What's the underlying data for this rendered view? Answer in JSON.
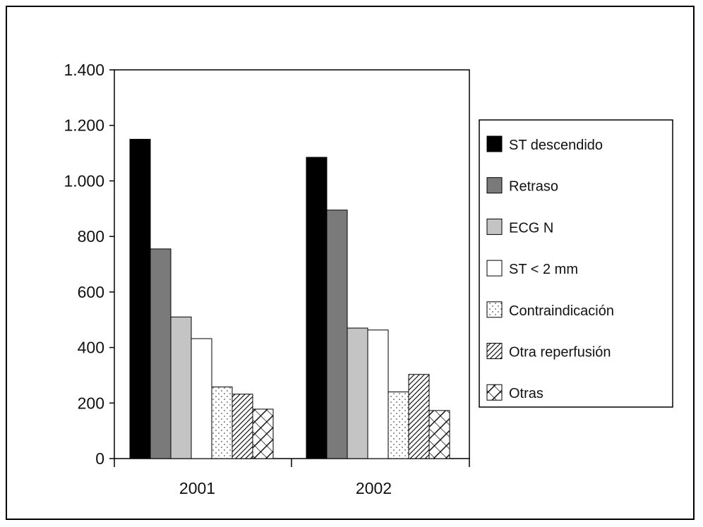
{
  "chart_data": {
    "type": "bar",
    "title": "",
    "xlabel": "",
    "ylabel": "",
    "categories": [
      "2001",
      "2002"
    ],
    "ylim": [
      0,
      1400
    ],
    "yticks": [
      0,
      200,
      400,
      600,
      800,
      1000,
      1200,
      1400
    ],
    "ytick_labels": [
      "0",
      "200",
      "400",
      "600",
      "800",
      "1.000",
      "1.200",
      "1.400"
    ],
    "grid": false,
    "legend_position": "right",
    "series": [
      {
        "name": "ST descendido",
        "values": [
          1150,
          1085
        ],
        "fill": "#000000",
        "pattern": "solid"
      },
      {
        "name": "Retraso",
        "values": [
          755,
          895
        ],
        "fill": "#7a7a7a",
        "pattern": "solid"
      },
      {
        "name": "ECG N",
        "values": [
          510,
          470
        ],
        "fill": "#c4c4c4",
        "pattern": "solid"
      },
      {
        "name": "ST < 2 mm",
        "values": [
          432,
          463
        ],
        "fill": "#ffffff",
        "pattern": "solid"
      },
      {
        "name": "Contraindicación",
        "values": [
          258,
          240
        ],
        "fill": "#ffffff",
        "pattern": "dots"
      },
      {
        "name": "Otra reperfusión",
        "values": [
          232,
          303
        ],
        "fill": "#ffffff",
        "pattern": "dense-diagonal"
      },
      {
        "name": "Otras",
        "values": [
          178,
          173
        ],
        "fill": "#ffffff",
        "pattern": "crosshatch"
      }
    ]
  }
}
